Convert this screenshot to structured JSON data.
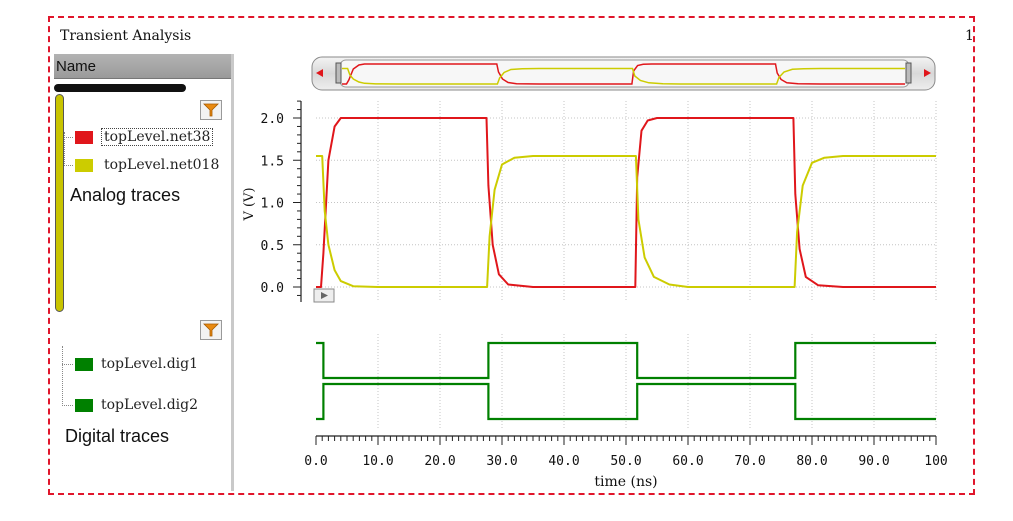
{
  "window": {
    "title": "Transient Analysis",
    "page_number": "1"
  },
  "left_panel": {
    "column_header": "Name",
    "analog_label": "Analog traces",
    "digital_label": "Digital traces",
    "analog_traces": [
      {
        "name": "topLevel.net38",
        "color": "#e0161b"
      },
      {
        "name": "topLevel.net018",
        "color": "#cccc00"
      }
    ],
    "digital_traces": [
      {
        "name": "topLevel.dig1",
        "color": "#008000"
      },
      {
        "name": "topLevel.dig2",
        "color": "#008000"
      }
    ]
  },
  "chart_data": {
    "type": "line",
    "xlabel": "time (ns)",
    "ylabel": "V (V)",
    "xlim": [
      0,
      100
    ],
    "ylim": [
      0,
      2.0
    ],
    "grid": true,
    "x_ticks": [
      "0.0",
      "10.0",
      "20.0",
      "30.0",
      "40.0",
      "50.0",
      "60.0",
      "70.0",
      "80.0",
      "90.0",
      "100"
    ],
    "y_ticks": [
      "0.0",
      "0.5",
      "1.0",
      "1.5",
      "2.0"
    ],
    "series": [
      {
        "name": "topLevel.net38",
        "color": "#e0161b",
        "x": [
          0,
          0.8,
          1.2,
          2,
          3,
          4,
          10,
          27.5,
          27.8,
          28.5,
          29.5,
          31,
          35,
          51.5,
          51.8,
          52.5,
          53.5,
          55,
          77,
          77.3,
          78,
          79,
          81,
          85,
          100
        ],
        "y": [
          0,
          0,
          0.4,
          1.5,
          1.9,
          2.0,
          2.0,
          2.0,
          1.2,
          0.5,
          0.15,
          0.03,
          0,
          0,
          1.3,
          1.85,
          1.97,
          2.0,
          2.0,
          1.1,
          0.45,
          0.12,
          0.02,
          0,
          0
        ]
      },
      {
        "name": "topLevel.net018",
        "color": "#cccc00",
        "x": [
          0,
          1.0,
          1.4,
          2,
          3,
          4,
          6,
          10,
          27.6,
          28,
          28.8,
          30,
          32,
          35,
          51.6,
          52,
          53,
          54.5,
          57,
          60,
          77.2,
          77.6,
          78.5,
          80,
          82,
          85,
          100
        ],
        "y": [
          1.55,
          1.55,
          0.9,
          0.5,
          0.2,
          0.07,
          0.01,
          0,
          0,
          0.6,
          1.15,
          1.45,
          1.53,
          1.55,
          1.55,
          0.8,
          0.35,
          0.12,
          0.03,
          0,
          0,
          0.65,
          1.2,
          1.47,
          1.53,
          1.55,
          1.55
        ]
      }
    ],
    "digital": [
      {
        "name": "topLevel.dig1",
        "color": "#008000",
        "x": [
          0,
          1.2,
          27.8,
          51.8,
          77.3,
          100
        ],
        "levels": [
          1,
          0,
          1,
          0,
          1,
          1
        ]
      },
      {
        "name": "topLevel.dig2",
        "color": "#008000",
        "x": [
          0,
          1.2,
          27.8,
          51.8,
          77.3,
          100
        ],
        "levels": [
          0,
          1,
          0,
          1,
          0,
          0
        ]
      }
    ]
  }
}
